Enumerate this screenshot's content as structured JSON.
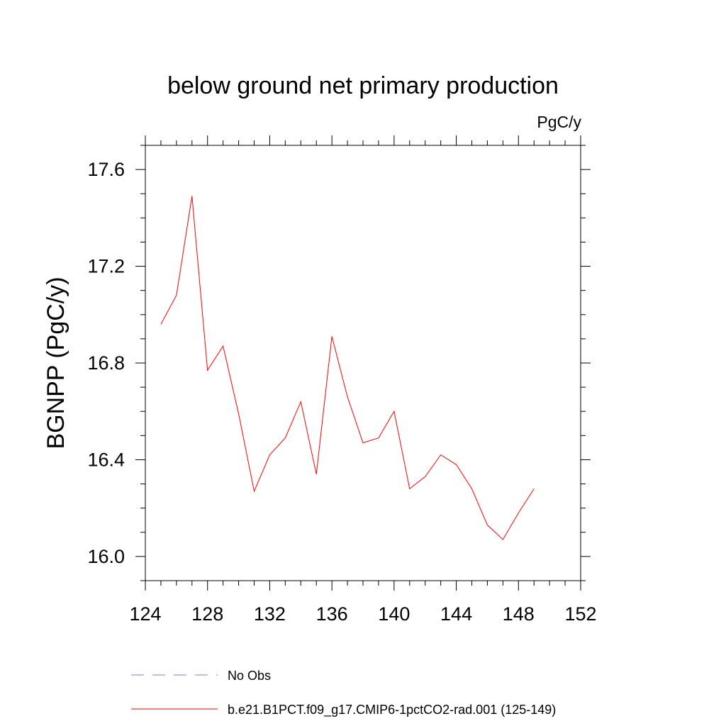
{
  "chart_data": {
    "type": "line",
    "title": "below ground net primary production",
    "units_label": "PgC/y",
    "xlabel": "",
    "ylabel": "BGNPP  (PgC/y)",
    "xlim": [
      124,
      152
    ],
    "ylim": [
      15.9,
      17.7
    ],
    "x_ticks": [
      124,
      128,
      132,
      136,
      140,
      144,
      148,
      152
    ],
    "x_tick_labels": [
      "124",
      "128",
      "132",
      "136",
      "140",
      "144",
      "148",
      "152"
    ],
    "x_minor_step": 1,
    "y_ticks": [
      16.0,
      16.4,
      16.8,
      17.2,
      17.6
    ],
    "y_tick_labels": [
      "16.0",
      "16.4",
      "16.8",
      "17.2",
      "17.6"
    ],
    "y_minor_step": 0.1,
    "grid": false,
    "legend_position": "bottom",
    "series": [
      {
        "name": "No Obs",
        "color": "#7f7fbf",
        "style": "dashed",
        "x": [],
        "y": []
      },
      {
        "name": "b.e21.B1PCT.f09_g17.CMIP6-1pctCO2-rad.001 (125-149)",
        "color": "#ff0000",
        "style": "solid",
        "x": [
          125,
          126,
          127,
          128,
          129,
          130,
          131,
          132,
          133,
          134,
          135,
          136,
          137,
          138,
          139,
          140,
          141,
          142,
          143,
          144,
          145,
          146,
          147,
          148,
          149
        ],
        "y": [
          16.96,
          17.08,
          17.49,
          16.77,
          16.87,
          16.59,
          16.27,
          16.42,
          16.49,
          16.64,
          16.34,
          16.91,
          16.66,
          16.47,
          16.49,
          16.6,
          16.28,
          16.33,
          16.42,
          16.38,
          16.28,
          16.13,
          16.07,
          16.18,
          16.28
        ]
      }
    ]
  }
}
